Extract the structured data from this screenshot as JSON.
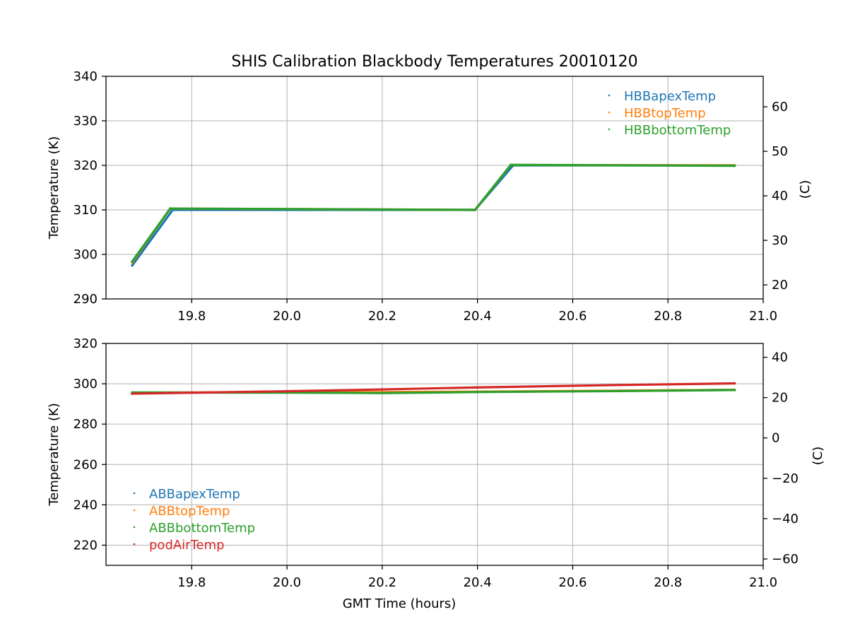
{
  "title": "SHIS Calibration Blackbody Temperatures 20010120",
  "chart_data": [
    {
      "type": "scatter",
      "title": "SHIS Calibration Blackbody Temperatures 20010120",
      "xlabel": "",
      "ylabel": "Temperature (K)",
      "ylabel_right": "(C)",
      "xlim": [
        19.62,
        21.0
      ],
      "ylim": [
        290,
        340
      ],
      "ylim_right_C": [
        16.85,
        66.85
      ],
      "xticks": [
        "19.8",
        "20.0",
        "20.2",
        "20.4",
        "20.6",
        "20.8",
        "21.0"
      ],
      "yticks": [
        "290",
        "300",
        "310",
        "320",
        "330",
        "340"
      ],
      "yticks_right": [
        "20",
        "30",
        "40",
        "50",
        "60"
      ],
      "grid": true,
      "legend_position": "top-right",
      "series": [
        {
          "name": "HBBapexTemp",
          "color": "#1f77b4",
          "x": [
            19.675,
            19.76,
            20.395,
            20.475,
            20.94
          ],
          "y": [
            297.5,
            310.0,
            310.0,
            320.0,
            320.0
          ]
        },
        {
          "name": "HBBtopTemp",
          "color": "#ff7f0e",
          "x": [
            19.675,
            19.755,
            20.395,
            20.47,
            20.94
          ],
          "y": [
            298.2,
            310.3,
            310.0,
            320.1,
            320.0
          ]
        },
        {
          "name": "HBBbottomTemp",
          "color": "#2ca02c",
          "x": [
            19.675,
            19.755,
            20.395,
            20.47,
            20.94
          ],
          "y": [
            298.4,
            310.3,
            310.0,
            320.1,
            319.9
          ]
        }
      ]
    },
    {
      "type": "scatter",
      "xlabel": "GMT Time (hours)",
      "ylabel": "Temperature (K)",
      "ylabel_right": "(C)",
      "xlim": [
        19.62,
        21.0
      ],
      "ylim": [
        210,
        320
      ],
      "ylim_right_C": [
        -63.15,
        46.85
      ],
      "xticks": [
        "19.8",
        "20.0",
        "20.2",
        "20.4",
        "20.6",
        "20.8",
        "21.0"
      ],
      "yticks": [
        "220",
        "240",
        "260",
        "280",
        "300",
        "320"
      ],
      "yticks_right": [
        "−60",
        "−40",
        "−20",
        "0",
        "20",
        "40"
      ],
      "grid": true,
      "legend_position": "lower-left",
      "series": [
        {
          "name": "ABBapexTemp",
          "color": "#1f77b4",
          "x": [
            19.675,
            20.0,
            20.2,
            20.4,
            20.7,
            20.94
          ],
          "y": [
            295.6,
            295.7,
            295.8,
            296.0,
            296.5,
            297.0
          ]
        },
        {
          "name": "ABBtopTemp",
          "color": "#ff7f0e",
          "x": [
            19.675,
            20.0,
            20.2,
            20.4,
            20.7,
            20.94
          ],
          "y": [
            295.6,
            295.8,
            295.9,
            296.1,
            296.6,
            297.0
          ]
        },
        {
          "name": "ABBbottomTemp",
          "color": "#2ca02c",
          "x": [
            19.675,
            20.0,
            20.2,
            20.4,
            20.7,
            20.94
          ],
          "y": [
            295.7,
            295.6,
            295.4,
            295.9,
            296.4,
            296.9
          ]
        },
        {
          "name": "podAirTemp",
          "color": "#d62728",
          "x": [
            19.675,
            20.0,
            20.2,
            20.4,
            20.7,
            20.94
          ],
          "y": [
            295.1,
            296.3,
            297.2,
            298.2,
            299.4,
            300.2
          ]
        }
      ]
    }
  ]
}
